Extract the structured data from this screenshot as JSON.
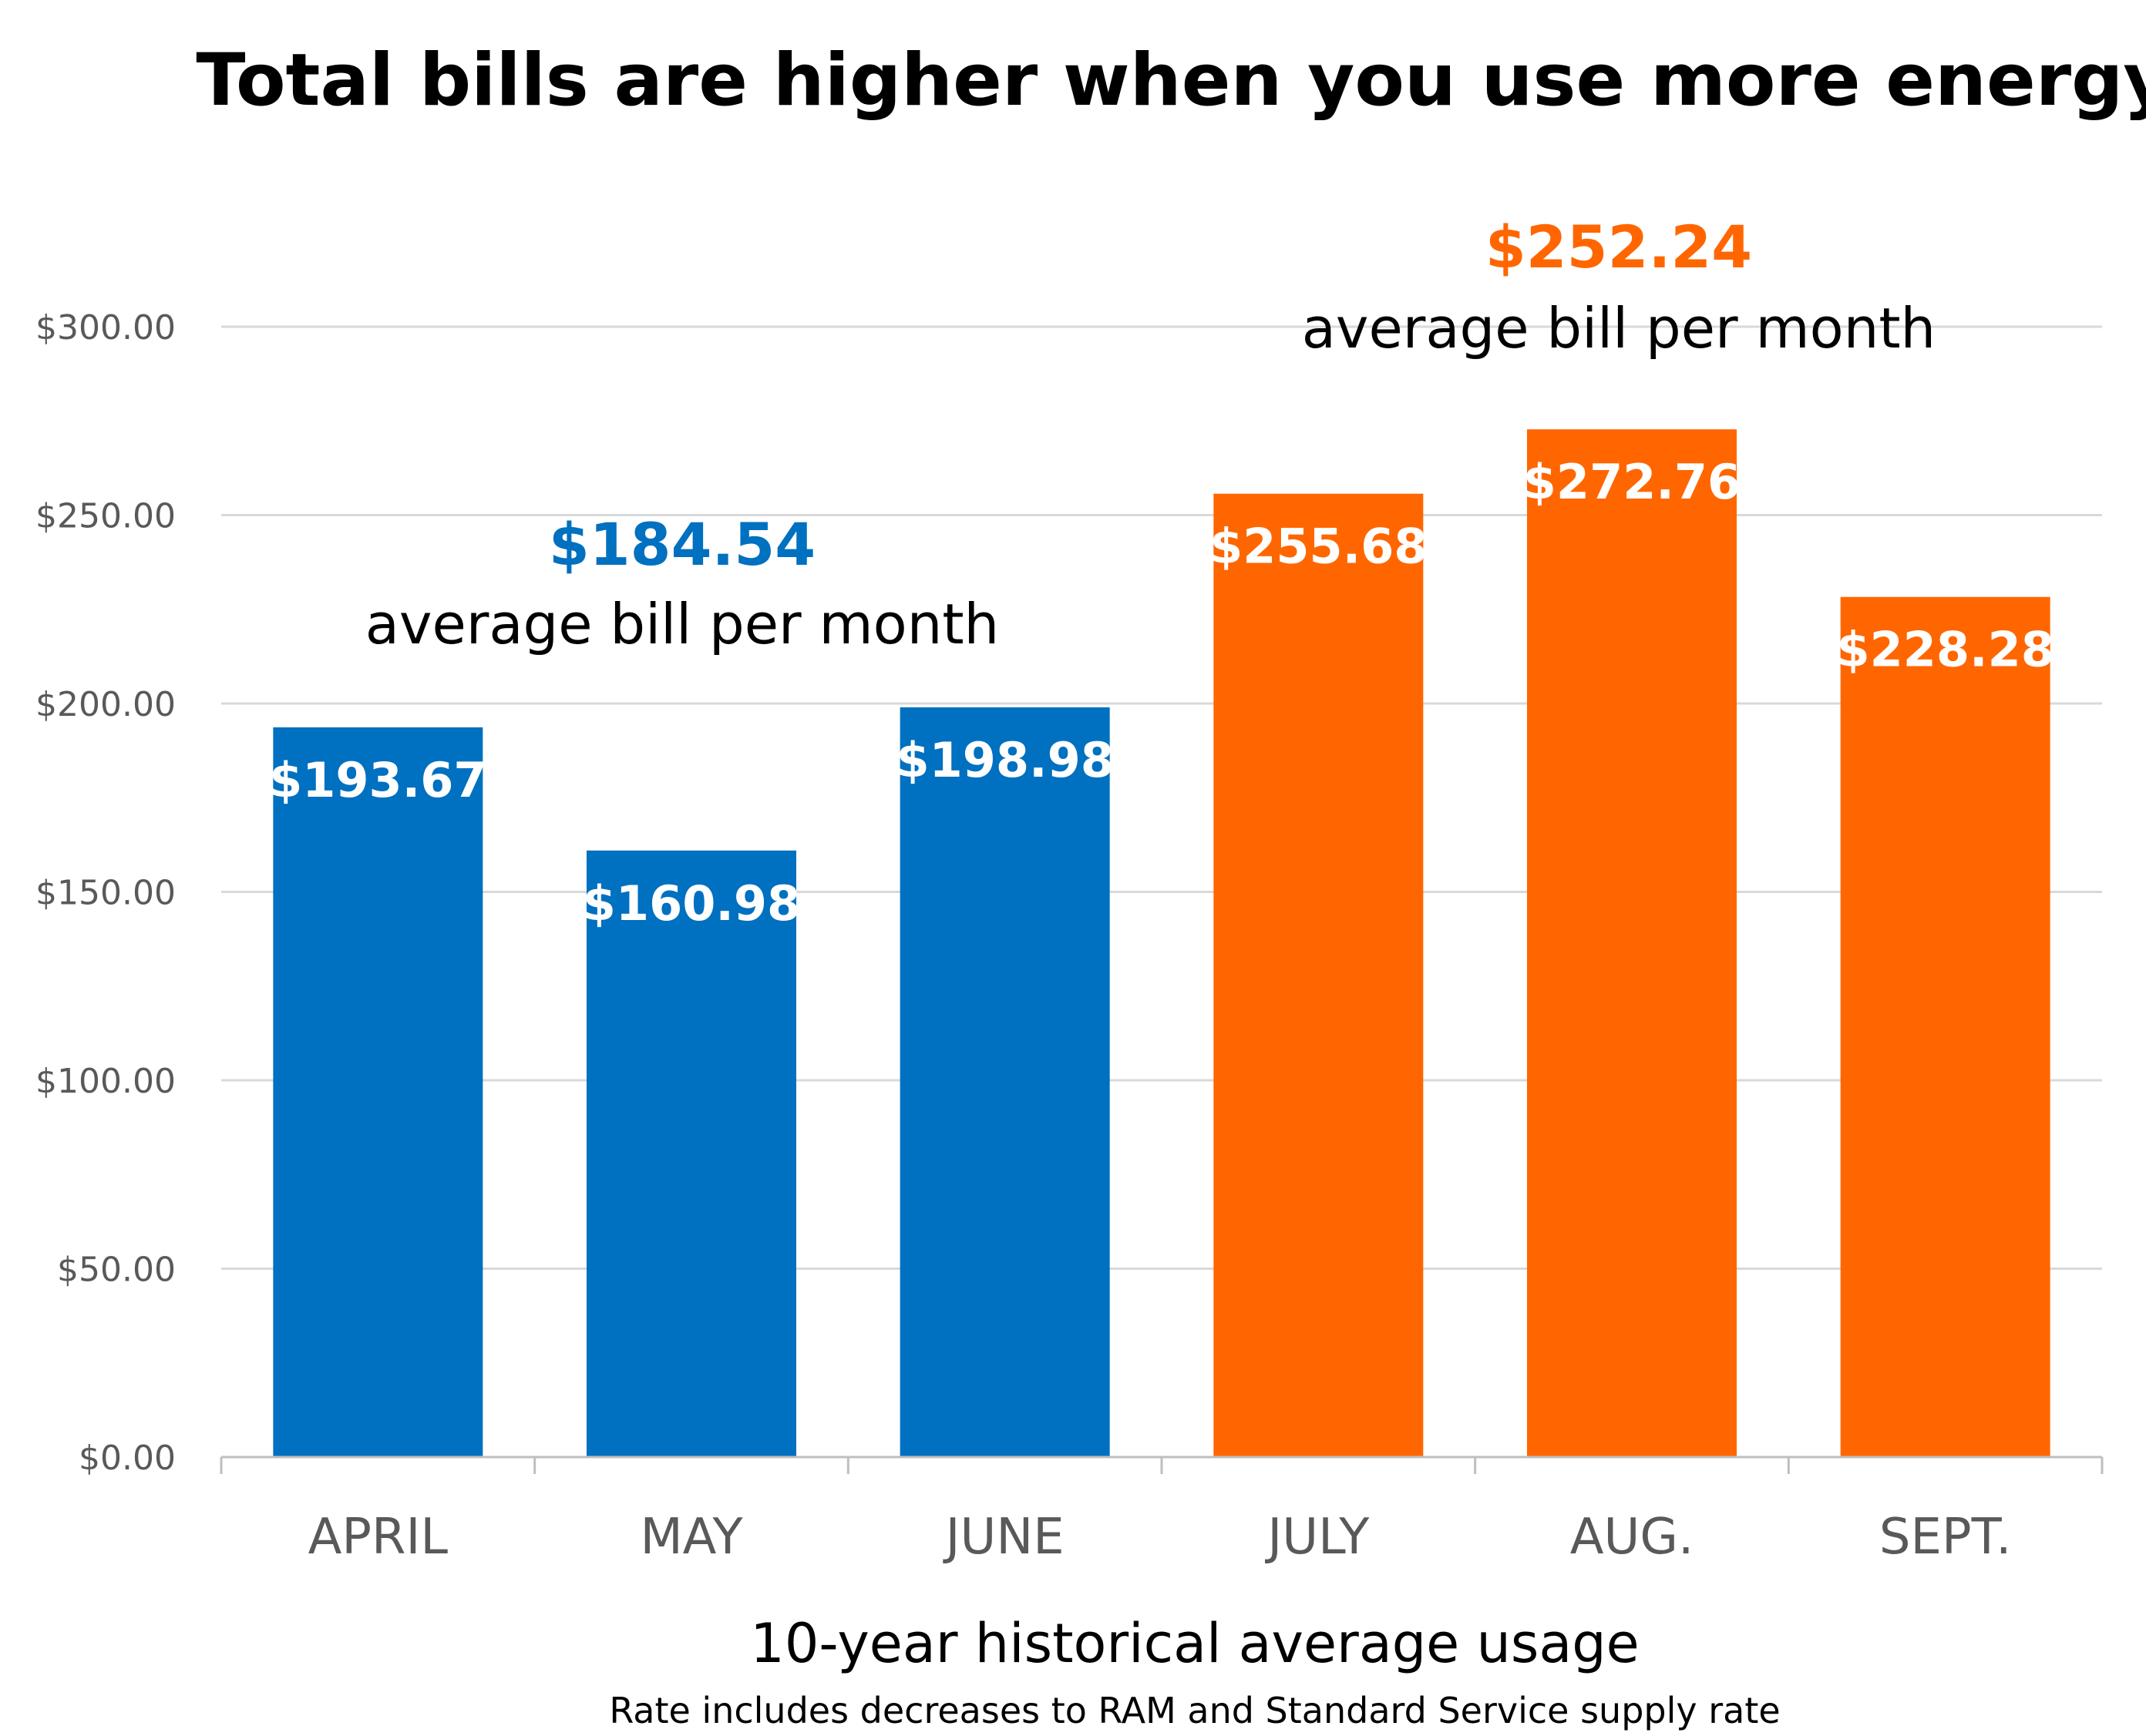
{
  "chart_data": {
    "type": "bar",
    "title": "Total bills are higher when you use more energy",
    "xlabel": "10-year historical average usage",
    "footnote": "Rate includes decreases to RAM and Standard Service supply rate",
    "ylabel": "",
    "ylim": [
      0,
      300
    ],
    "yticks": [
      0,
      50,
      100,
      150,
      200,
      250,
      300
    ],
    "ytick_labels": [
      "$0.00",
      "$50.00",
      "$100.00",
      "$150.00",
      "$200.00",
      "$250.00",
      "$300.00"
    ],
    "grid": true,
    "legend": "none",
    "categories": [
      "APRIL",
      "MAY",
      "JUNE",
      "JULY",
      "AUG.",
      "SEPT."
    ],
    "values": [
      193.67,
      160.98,
      198.98,
      255.68,
      272.76,
      228.28
    ],
    "value_labels": [
      "$193.67",
      "$160.98",
      "$198.98",
      "$255.68",
      "$272.76",
      "$228.28"
    ],
    "bar_colors": [
      "#0070C0",
      "#0070C0",
      "#0070C0",
      "#FF6600",
      "#FF6600",
      "#FF6600"
    ],
    "annotations": [
      {
        "value": "$184.54",
        "caption": "average bill per month",
        "color": "#0070C0"
      },
      {
        "value": "$252.24",
        "caption": "average bill per month",
        "color": "#FF6600"
      }
    ]
  }
}
